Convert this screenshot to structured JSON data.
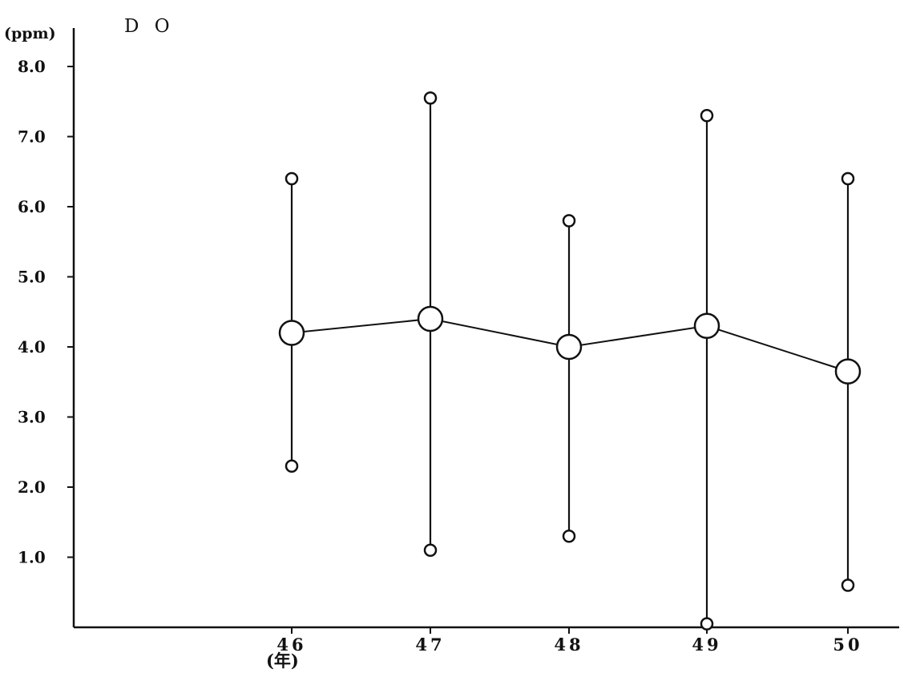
{
  "chart_data": {
    "type": "line",
    "title": "D O",
    "ylabel": "(ppm)",
    "xlabel": "(年)",
    "x": [
      "46",
      "47",
      "48",
      "49",
      "50"
    ],
    "ylim": [
      0,
      8.0
    ],
    "yticks": [
      "1.0",
      "2.0",
      "3.0",
      "4.0",
      "5.0",
      "6.0",
      "7.0",
      "8.0"
    ],
    "grid": false,
    "series": [
      {
        "role": "mean",
        "values": [
          4.2,
          4.4,
          4.0,
          4.3,
          3.65
        ]
      },
      {
        "role": "max",
        "values": [
          6.4,
          7.55,
          5.8,
          7.3,
          6.4
        ]
      },
      {
        "role": "min",
        "values": [
          2.3,
          1.1,
          1.3,
          0.05,
          0.6
        ]
      }
    ]
  }
}
